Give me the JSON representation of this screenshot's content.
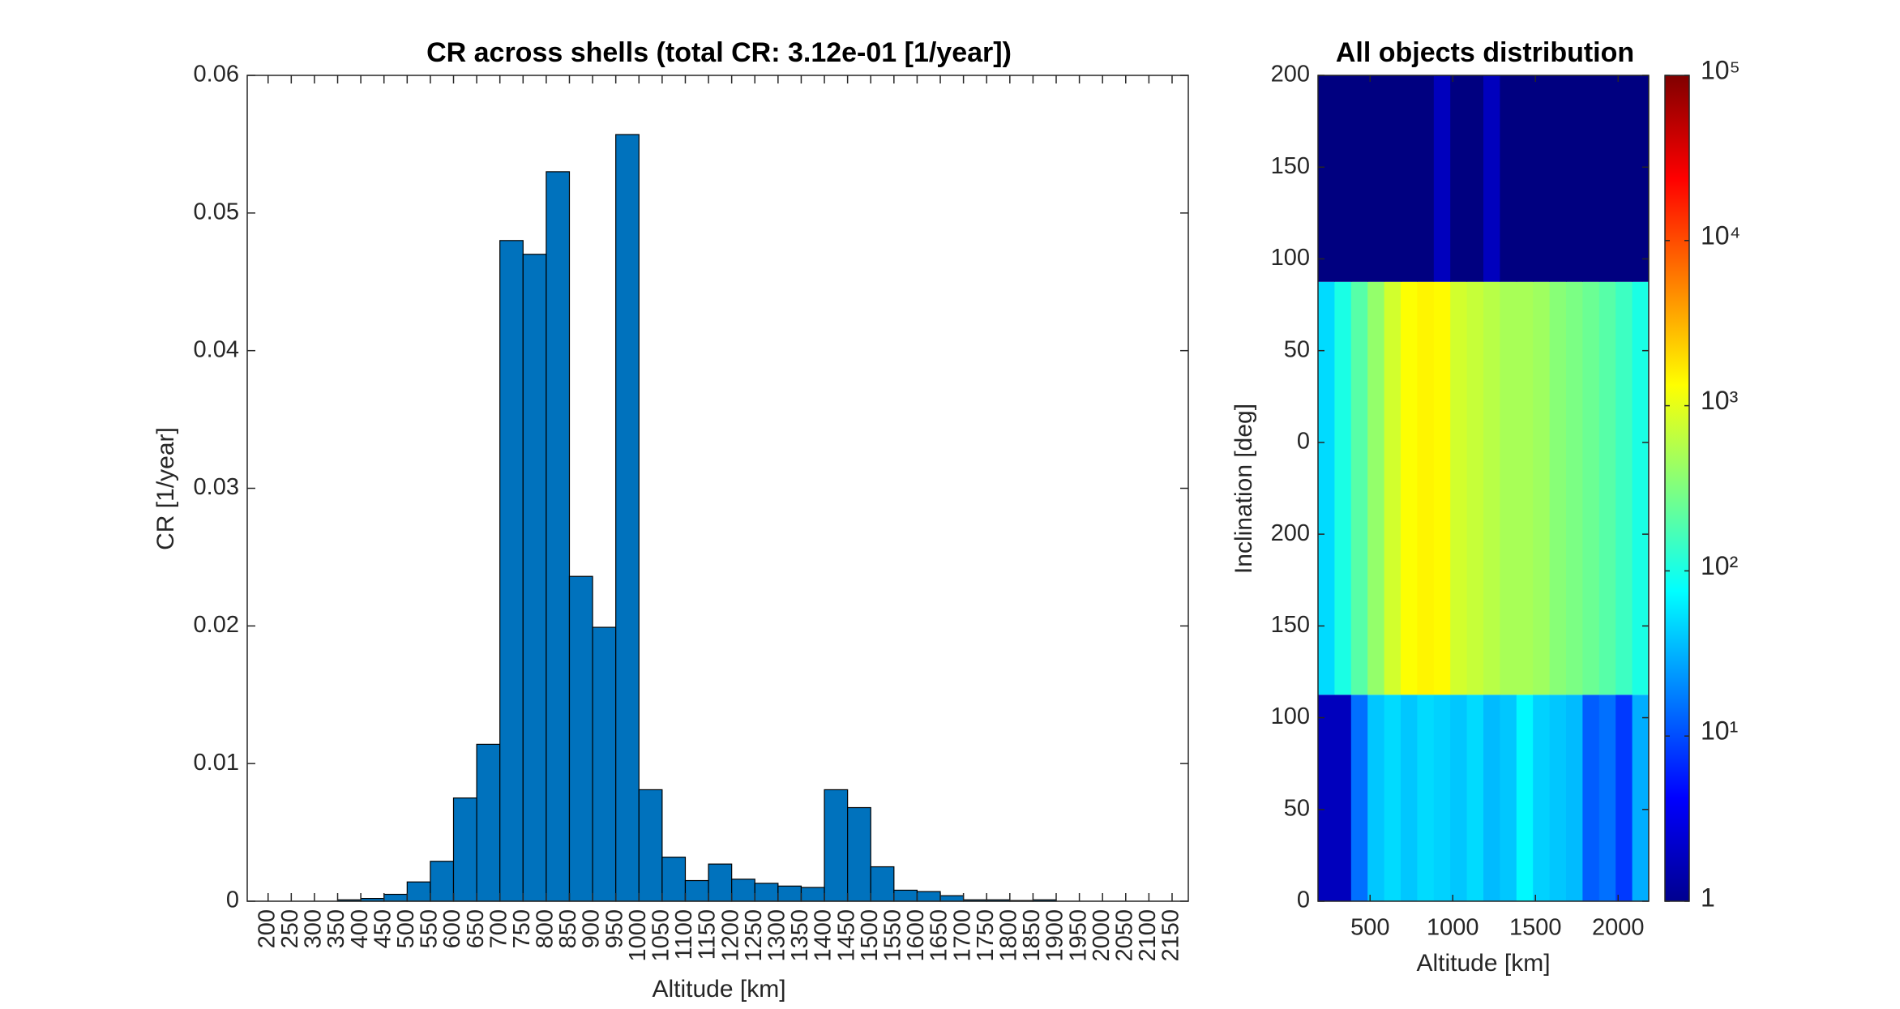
{
  "chart_data": [
    {
      "type": "histogram",
      "title": "CR across shells (total CR: 3.12e-01 [1/year])",
      "xlabel": "Altitude [km]",
      "ylabel": "CR [1/year]",
      "bins": [
        200,
        250,
        300,
        350,
        400,
        450,
        500,
        550,
        600,
        650,
        700,
        750,
        800,
        850,
        900,
        950,
        1000,
        1050,
        1100,
        1150,
        1200,
        1250,
        1300,
        1350,
        1400,
        1450,
        1500,
        1550,
        1600,
        1650,
        1700,
        1750,
        1800,
        1850,
        1900,
        1950,
        2000,
        2050,
        2100,
        2150
      ],
      "values": [
        0,
        0,
        0,
        0.0001,
        0.0002,
        0.0005,
        0.0014,
        0.0029,
        0.0075,
        0.0114,
        0.048,
        0.047,
        0.053,
        0.0236,
        0.0199,
        0.0557,
        0.0081,
        0.0032,
        0.0015,
        0.0027,
        0.0016,
        0.0013,
        0.0011,
        0.001,
        0.0081,
        0.0068,
        0.0025,
        0.0008,
        0.0007,
        0.0004,
        0.0001,
        0.0001,
        5e-05,
        0.0001,
        0,
        0,
        0,
        0,
        0
      ],
      "color": "#0072BD",
      "xlim": [
        155,
        2185
      ],
      "xticks": [
        200,
        250,
        300,
        350,
        400,
        450,
        500,
        550,
        600,
        650,
        700,
        750,
        800,
        850,
        900,
        950,
        1000,
        1050,
        1100,
        1150,
        1200,
        1250,
        1300,
        1350,
        1400,
        1450,
        1500,
        1550,
        1600,
        1650,
        1700,
        1750,
        1800,
        1850,
        1900,
        1950,
        2000,
        2050,
        2100,
        2150
      ],
      "ylim": [
        0,
        0.06
      ],
      "yticks": [
        0,
        0.01,
        0.02,
        0.03,
        0.04,
        0.05,
        0.06
      ]
    },
    {
      "type": "heatmap",
      "title": "All objects distribution",
      "xlabel": "Altitude [km]",
      "ylabel": "Inclination [deg]",
      "xbins": [
        185,
        285,
        385,
        485,
        585,
        685,
        785,
        885,
        985,
        1085,
        1185,
        1285,
        1385,
        1485,
        1585,
        1685,
        1785,
        1885,
        1985,
        2085,
        2185
      ],
      "ybins": [
        0,
        2.25,
        6.75,
        9
      ],
      "z": [
        [
          2,
          2,
          15,
          40,
          50,
          40,
          50,
          45,
          40,
          50,
          35,
          40,
          70,
          45,
          40,
          35,
          12,
          15,
          8,
          30
        ],
        [
          50,
          100,
          200,
          400,
          800,
          1300,
          1500,
          1400,
          800,
          700,
          600,
          500,
          500,
          450,
          350,
          300,
          250,
          200,
          150,
          100
        ],
        [
          1,
          1,
          1,
          1,
          1,
          1,
          1,
          2,
          1,
          1,
          2,
          1,
          1,
          1,
          1,
          1,
          1,
          1,
          1,
          1
        ]
      ],
      "colorscale": "jet",
      "clim": [
        1,
        100000
      ],
      "log_color": true,
      "cticks": [
        1,
        {
          "value": 10,
          "label": "10¹"
        },
        {
          "value": 100,
          "label": "10²"
        },
        {
          "value": 1000,
          "label": "10³"
        },
        {
          "value": 10000,
          "label": "10⁴"
        },
        {
          "value": 100000,
          "label": "10⁵"
        }
      ],
      "xlim": [
        185,
        2185
      ],
      "xticks": [
        500,
        1000,
        1500,
        2000
      ],
      "ylim": [
        0,
        9
      ],
      "yticks": [
        {
          "value": 0,
          "label": "0"
        },
        {
          "value": 1,
          "label": "50"
        },
        {
          "value": 2,
          "label": "100"
        },
        {
          "value": 3,
          "label": "150"
        },
        {
          "value": 4,
          "label": "200"
        },
        {
          "value": 5,
          "label": "0"
        },
        {
          "value": 6,
          "label": "50"
        },
        {
          "value": 7,
          "label": "100"
        },
        {
          "value": 8,
          "label": "150"
        },
        {
          "value": 9,
          "label": "200"
        }
      ]
    }
  ]
}
